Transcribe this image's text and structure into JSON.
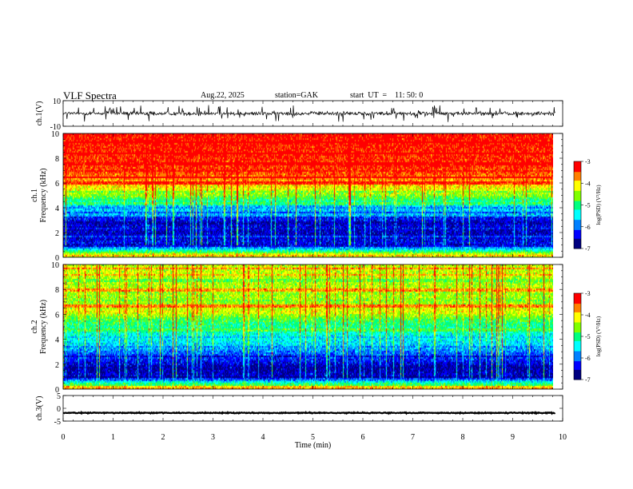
{
  "header": {
    "title": "VLF  Spectra",
    "date": "Aug.22, 2025",
    "station": "station=GAK",
    "start": "start  UT  =    11: 50: 0"
  },
  "colors": {
    "colormap": [
      "#000080",
      "#0000ff",
      "#0080ff",
      "#00ffff",
      "#00ff80",
      "#80ff00",
      "#ffff00",
      "#ff8000",
      "#ff0000",
      "#ffffff"
    ],
    "trace": "#000000",
    "axes": "#000000"
  },
  "chart_data": [
    {
      "type": "line",
      "panel": "ch1-waveform",
      "ylabel": "ch.1(V)",
      "ylim": [
        -10,
        10
      ],
      "y_ticks": [
        "10",
        "-10"
      ],
      "xlim": [
        0,
        10
      ],
      "description_values": {
        "mean_level": 0.0,
        "typical_amplitude": 2.5,
        "spike_amplitude": 6
      }
    },
    {
      "type": "heatmap",
      "panel": "ch1-spectrogram",
      "ylabel": "ch.1\nFrequency  (kHz)",
      "ylabel_lines": [
        "ch.1",
        "Frequency  (kHz)"
      ],
      "ylim": [
        0,
        10
      ],
      "y_ticks": [
        "0",
        "2",
        "4",
        "6",
        "8",
        "10"
      ],
      "xlim": [
        0,
        9.85
      ],
      "colorbar": {
        "label": "log(PSD) (V²/Hz)",
        "range": [
          -7,
          -3
        ],
        "ticks": [
          "-3",
          "-4",
          "-5",
          "-6",
          "-7"
        ]
      },
      "profile_khz": [
        [
          0,
          -4.5
        ],
        [
          0.3,
          -4.2
        ],
        [
          0.6,
          -5.2
        ],
        [
          1.0,
          -6.3
        ],
        [
          2.0,
          -6.6
        ],
        [
          3.0,
          -6.4
        ],
        [
          4.0,
          -5.9
        ],
        [
          4.5,
          -5.2
        ],
        [
          5.0,
          -4.6
        ],
        [
          6.0,
          -3.9
        ],
        [
          7.0,
          -3.4
        ],
        [
          10.0,
          -3.2
        ]
      ]
    },
    {
      "type": "heatmap",
      "panel": "ch2-spectrogram",
      "ylabel_lines": [
        "ch.2",
        "Frequency  (kHz)"
      ],
      "ylim": [
        0,
        10
      ],
      "y_ticks": [
        "0",
        "2",
        "4",
        "6",
        "8",
        "10"
      ],
      "xlim": [
        0,
        9.85
      ],
      "colorbar": {
        "label": "log(PSD) (V²/Hz)",
        "range": [
          -7,
          -3
        ],
        "ticks": [
          "-3",
          "-4",
          "-5",
          "-6",
          "-7"
        ]
      },
      "profile_khz": [
        [
          0,
          -4.3
        ],
        [
          0.5,
          -5.0
        ],
        [
          1.0,
          -6.5
        ],
        [
          1.8,
          -6.7
        ],
        [
          2.5,
          -6.2
        ],
        [
          3.0,
          -6.0
        ],
        [
          3.5,
          -5.6
        ],
        [
          4.5,
          -5.3
        ],
        [
          5.5,
          -4.9
        ],
        [
          6.3,
          -4.2
        ],
        [
          7.0,
          -4.5
        ],
        [
          10.0,
          -4.3
        ]
      ]
    },
    {
      "type": "line",
      "panel": "ch3-waveform",
      "ylabel": "ch.3(V)",
      "ylim": [
        -5,
        5
      ],
      "y_ticks": [
        "5",
        "0",
        "-5"
      ],
      "xlim": [
        0,
        10
      ],
      "description_values": {
        "mean_level": -1.8,
        "typical_amplitude": 0.3
      }
    }
  ],
  "x_axis": {
    "label": "Time  (min)",
    "ticks": [
      "0",
      "1",
      "2",
      "3",
      "4",
      "5",
      "6",
      "7",
      "8",
      "9",
      "10"
    ]
  }
}
